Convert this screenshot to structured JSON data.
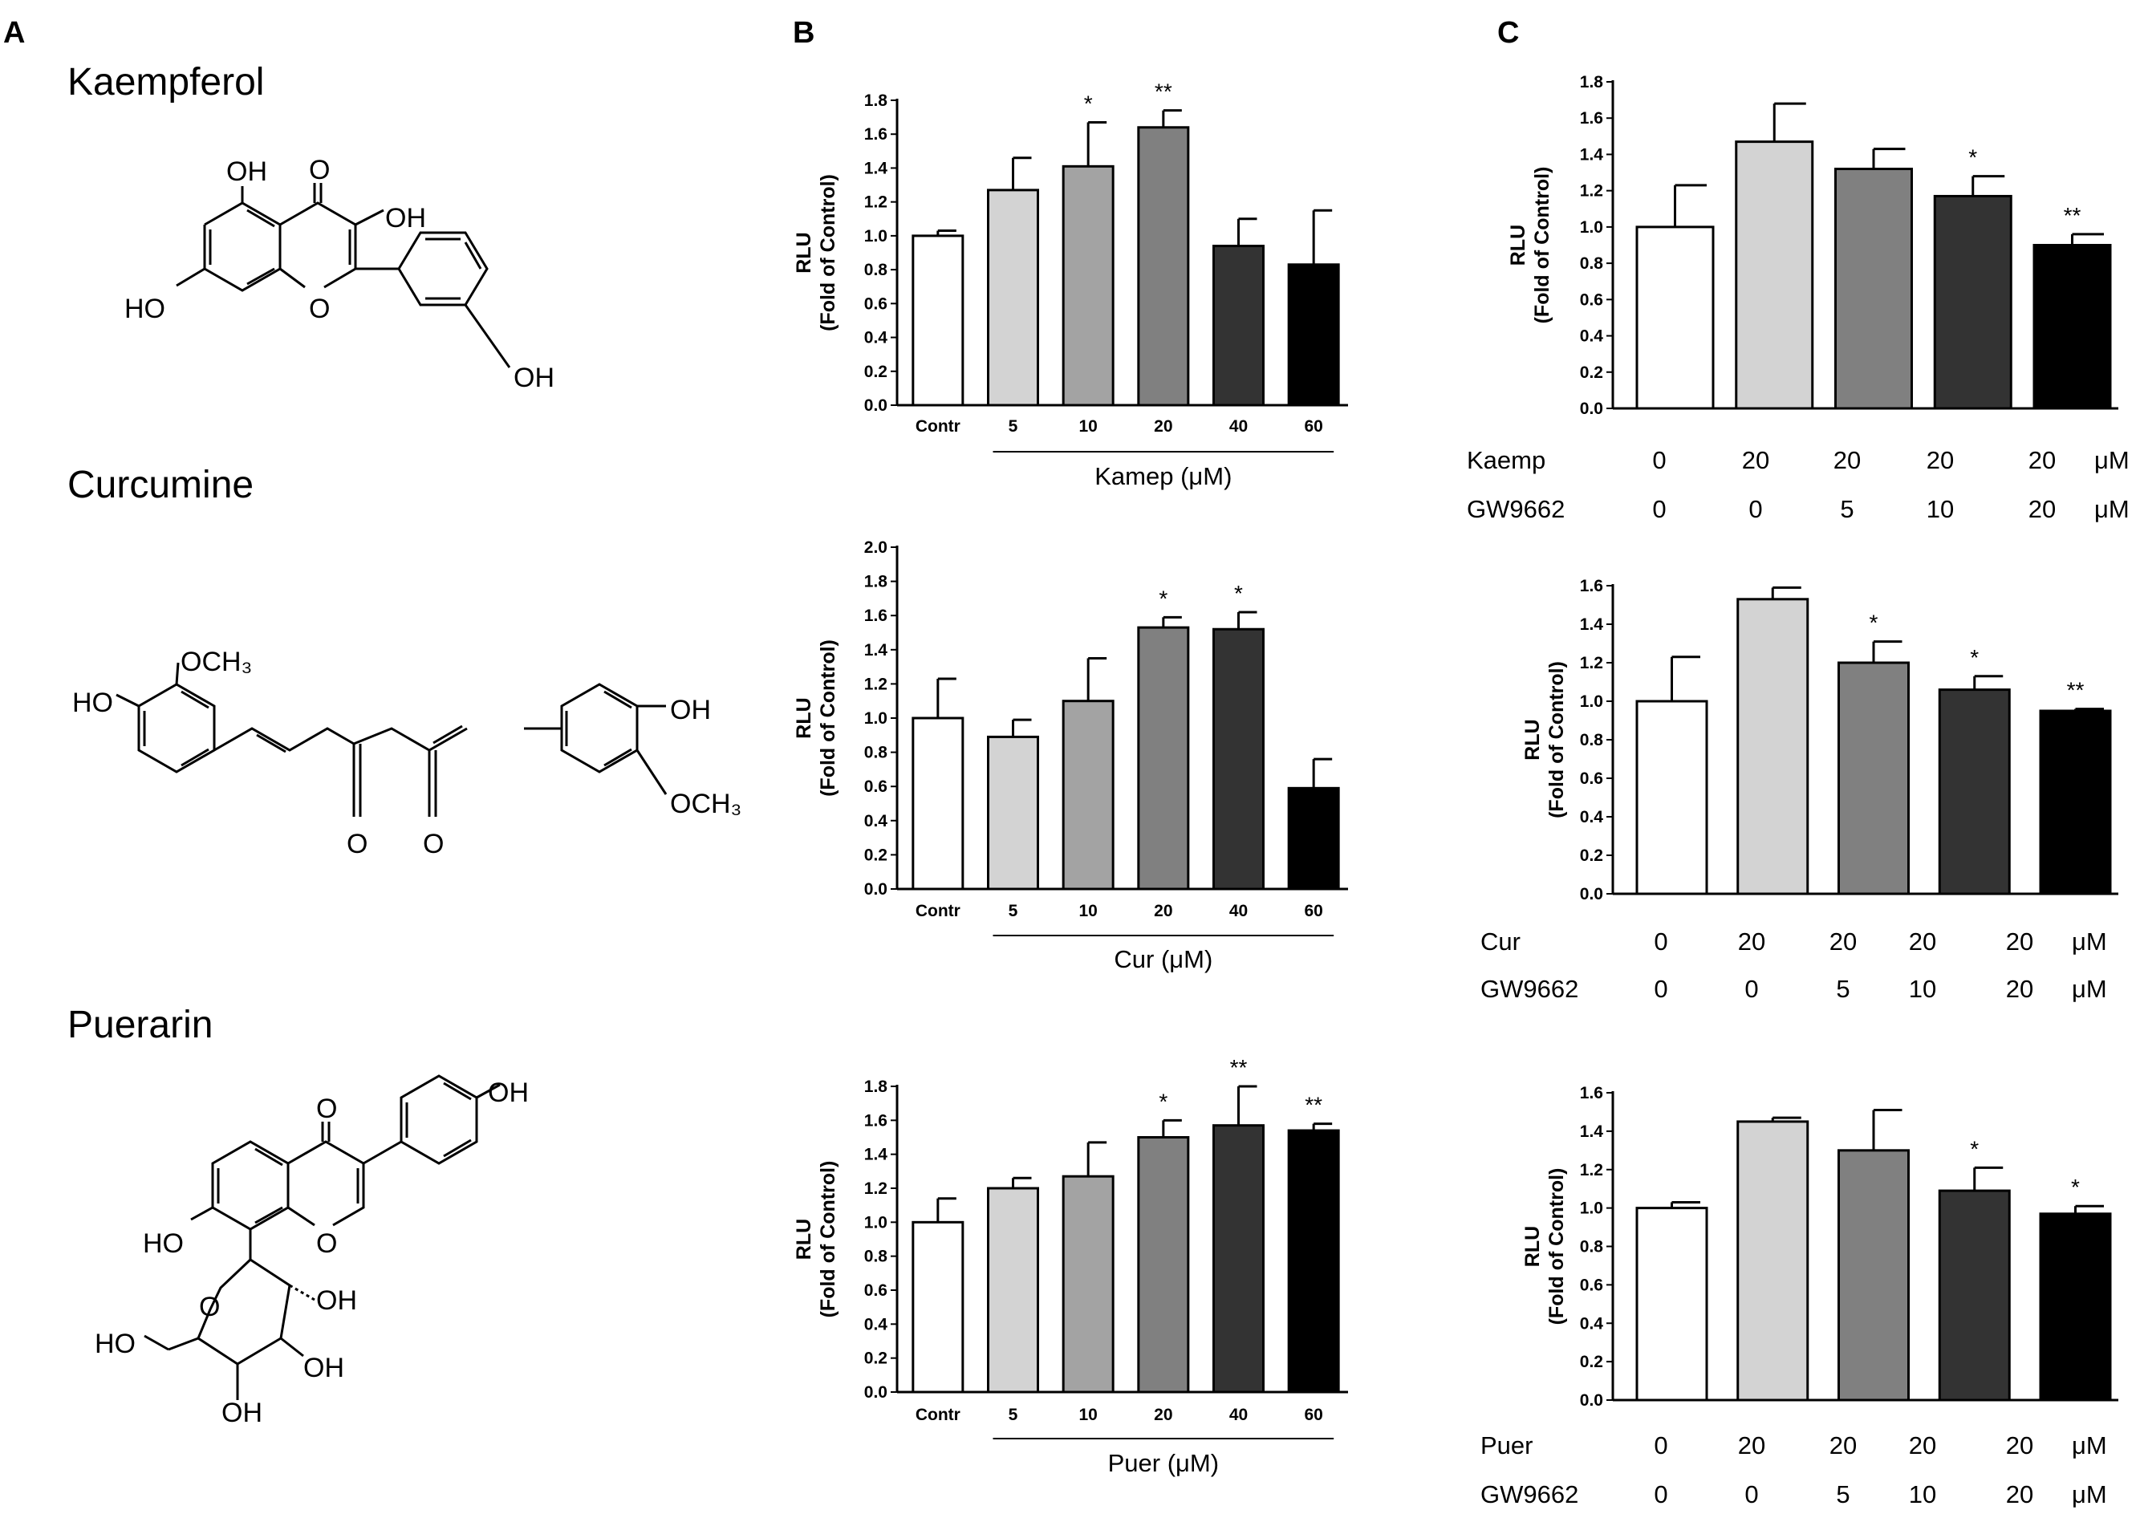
{
  "panels": {
    "A": "A",
    "B": "B",
    "C": "C"
  },
  "structures": [
    {
      "name": "Kaempferol",
      "labels": [
        "OH",
        "O",
        "OH",
        "HO",
        "O",
        "OH"
      ]
    },
    {
      "name": "Curcumine",
      "labels": [
        "OCH₃",
        "HO",
        "OH",
        "OCH₃",
        "O",
        "O"
      ]
    },
    {
      "name": "Puerarin",
      "labels": [
        "O",
        "OH",
        "HO",
        "O",
        "O",
        "OH",
        "HO",
        "OH",
        "OH"
      ]
    }
  ],
  "chart_data": [
    {
      "type": "bar",
      "panel": "B",
      "ylabel": [
        "RLU",
        "(Fold of Control)"
      ],
      "xlabel": "Kamep (μM)",
      "categories": [
        "Contr",
        "5",
        "10",
        "20",
        "40",
        "60"
      ],
      "values": [
        1.0,
        1.27,
        1.41,
        1.64,
        0.94,
        0.83
      ],
      "errors": [
        0.03,
        0.19,
        0.26,
        0.1,
        0.16,
        0.32
      ],
      "significance": [
        "",
        "",
        "*",
        "**",
        "",
        ""
      ],
      "ylim": [
        0,
        1.8
      ],
      "yticks": [
        0.0,
        0.2,
        0.4,
        0.6,
        0.8,
        1.0,
        1.2,
        1.4,
        1.6,
        1.8
      ],
      "colors": [
        "#ffffff",
        "#d3d3d3",
        "#a3a3a3",
        "#808080",
        "#333333",
        "#000000"
      ]
    },
    {
      "type": "bar",
      "panel": "B",
      "ylabel": [
        "RLU",
        "(Fold of Control)"
      ],
      "xlabel": "Cur (μM)",
      "categories": [
        "Contr",
        "5",
        "10",
        "20",
        "40",
        "60"
      ],
      "values": [
        1.0,
        0.89,
        1.1,
        1.53,
        1.52,
        0.59
      ],
      "errors": [
        0.23,
        0.1,
        0.25,
        0.06,
        0.1,
        0.17
      ],
      "significance": [
        "",
        "",
        "",
        "*",
        "*",
        ""
      ],
      "ylim": [
        0,
        2.0
      ],
      "yticks": [
        0.0,
        0.2,
        0.4,
        0.6,
        0.8,
        1.0,
        1.2,
        1.4,
        1.6,
        1.8,
        2.0
      ],
      "colors": [
        "#ffffff",
        "#d3d3d3",
        "#a3a3a3",
        "#808080",
        "#333333",
        "#000000"
      ]
    },
    {
      "type": "bar",
      "panel": "B",
      "ylabel": [
        "RLU",
        "(Fold of Control)"
      ],
      "xlabel": "Puer (μM)",
      "categories": [
        "Contr",
        "5",
        "10",
        "20",
        "40",
        "60"
      ],
      "values": [
        1.0,
        1.2,
        1.27,
        1.5,
        1.57,
        1.54
      ],
      "errors": [
        0.14,
        0.06,
        0.2,
        0.1,
        0.23,
        0.04
      ],
      "significance": [
        "",
        "",
        "",
        "*",
        "**",
        "**"
      ],
      "ylim": [
        0,
        1.8
      ],
      "yticks": [
        0.0,
        0.2,
        0.4,
        0.6,
        0.8,
        1.0,
        1.2,
        1.4,
        1.6,
        1.8
      ],
      "colors": [
        "#ffffff",
        "#d3d3d3",
        "#a3a3a3",
        "#808080",
        "#333333",
        "#000000"
      ]
    },
    {
      "type": "bar",
      "panel": "C",
      "ylabel": [
        "RLU",
        "(Fold of Control)"
      ],
      "treatment_rows": [
        {
          "label": "Kaemp",
          "values": [
            "0",
            "20",
            "20",
            "20",
            "20"
          ],
          "unit": "μM"
        },
        {
          "label": "GW9662",
          "values": [
            "0",
            "0",
            "5",
            "10",
            "20"
          ],
          "unit": "μM"
        }
      ],
      "values": [
        1.0,
        1.47,
        1.32,
        1.17,
        0.9
      ],
      "errors": [
        0.23,
        0.21,
        0.11,
        0.11,
        0.06
      ],
      "significance": [
        "",
        "",
        "",
        "*",
        "**"
      ],
      "ylim": [
        0,
        1.8
      ],
      "yticks": [
        0.0,
        0.2,
        0.4,
        0.6,
        0.8,
        1.0,
        1.2,
        1.4,
        1.6,
        1.8
      ],
      "colors": [
        "#ffffff",
        "#d3d3d3",
        "#808080",
        "#333333",
        "#000000"
      ]
    },
    {
      "type": "bar",
      "panel": "C",
      "ylabel": [
        "RLU",
        "(Fold of Control)"
      ],
      "treatment_rows": [
        {
          "label": "Cur",
          "values": [
            "0",
            "20",
            "20",
            "20",
            "20"
          ],
          "unit": "μM"
        },
        {
          "label": "GW9662",
          "values": [
            "0",
            "0",
            "5",
            "10",
            "20"
          ],
          "unit": "μM"
        }
      ],
      "values": [
        1.0,
        1.53,
        1.2,
        1.06,
        0.95
      ],
      "errors": [
        0.23,
        0.06,
        0.11,
        0.07,
        0.01
      ],
      "significance": [
        "",
        "",
        "*",
        "*",
        "**"
      ],
      "ylim": [
        0,
        1.6
      ],
      "yticks": [
        0.0,
        0.2,
        0.4,
        0.6,
        0.8,
        1.0,
        1.2,
        1.4,
        1.6
      ],
      "colors": [
        "#ffffff",
        "#d3d3d3",
        "#808080",
        "#333333",
        "#000000"
      ]
    },
    {
      "type": "bar",
      "panel": "C",
      "ylabel": [
        "RLU",
        "(Fold of Control)"
      ],
      "treatment_rows": [
        {
          "label": "Puer",
          "values": [
            "0",
            "20",
            "20",
            "20",
            "20"
          ],
          "unit": "μM"
        },
        {
          "label": "GW9662",
          "values": [
            "0",
            "0",
            "5",
            "10",
            "20"
          ],
          "unit": "μM"
        }
      ],
      "values": [
        1.0,
        1.45,
        1.3,
        1.09,
        0.97
      ],
      "errors": [
        0.03,
        0.02,
        0.21,
        0.12,
        0.04
      ],
      "significance": [
        "",
        "",
        "",
        "*",
        "*"
      ],
      "ylim": [
        0,
        1.6
      ],
      "yticks": [
        0.0,
        0.2,
        0.4,
        0.6,
        0.8,
        1.0,
        1.2,
        1.4,
        1.6
      ],
      "colors": [
        "#ffffff",
        "#d3d3d3",
        "#808080",
        "#333333",
        "#000000"
      ]
    }
  ]
}
